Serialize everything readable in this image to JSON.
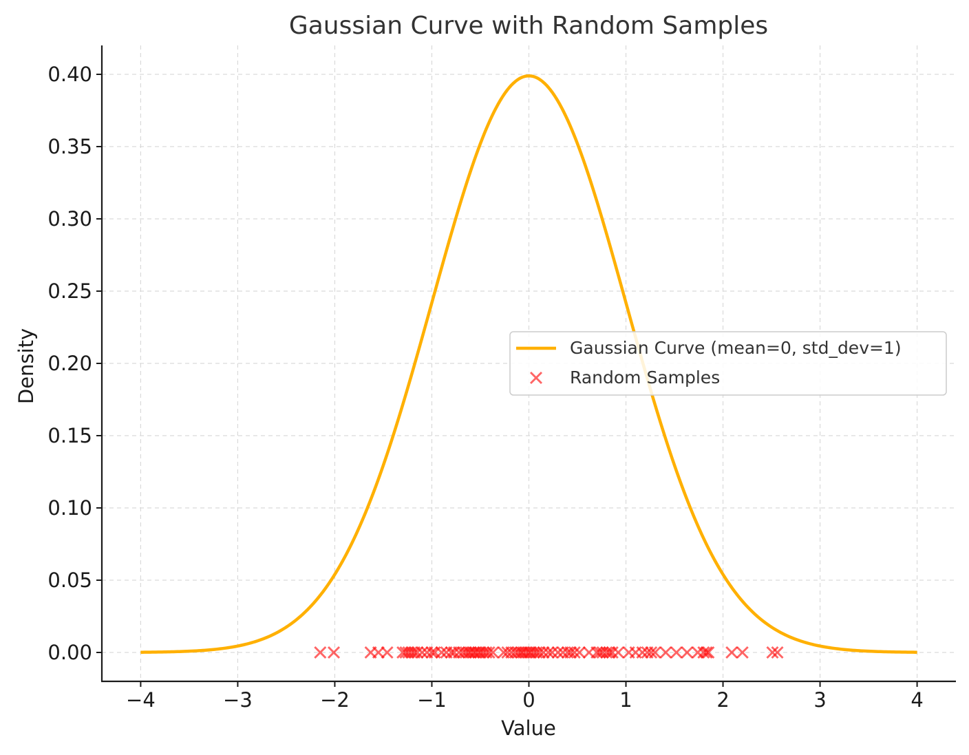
{
  "chart_data": {
    "type": "line",
    "title": "Gaussian Curve with Random Samples",
    "xlabel": "Value",
    "ylabel": "Density",
    "xlim": [
      -4.4,
      4.4
    ],
    "ylim": [
      -0.02,
      0.42
    ],
    "x_ticks": [
      -4,
      -3,
      -2,
      -1,
      0,
      1,
      2,
      3,
      4
    ],
    "x_tick_labels": [
      "−4",
      "−3",
      "−2",
      "−1",
      "0",
      "1",
      "2",
      "3",
      "4"
    ],
    "y_ticks": [
      0.0,
      0.05,
      0.1,
      0.15,
      0.2,
      0.25,
      0.3,
      0.35,
      0.4
    ],
    "y_tick_labels": [
      "0.00",
      "0.05",
      "0.10",
      "0.15",
      "0.20",
      "0.25",
      "0.30",
      "0.35",
      "0.40"
    ],
    "grid": true,
    "legend_position": "center-right",
    "series": [
      {
        "name": "Gaussian Curve (mean=0, std_dev=1)",
        "kind": "line",
        "color": "#FFB000",
        "mean": 0,
        "std_dev": 1,
        "x_range": [
          -4,
          4
        ]
      },
      {
        "name": "Random Samples",
        "kind": "scatter",
        "marker": "x",
        "color": "#FF0000",
        "x": [
          -2.15,
          -2.01,
          -1.63,
          -1.55,
          -1.46,
          -1.3,
          -1.27,
          -1.24,
          -1.21,
          -1.18,
          -1.15,
          -1.1,
          -1.05,
          -1.0,
          -0.97,
          -0.9,
          -0.85,
          -0.8,
          -0.77,
          -0.72,
          -0.68,
          -0.65,
          -0.62,
          -0.6,
          -0.57,
          -0.55,
          -0.52,
          -0.5,
          -0.47,
          -0.44,
          -0.41,
          -0.37,
          -0.26,
          -0.22,
          -0.18,
          -0.14,
          -0.11,
          -0.08,
          -0.06,
          -0.03,
          0.0,
          0.02,
          0.05,
          0.08,
          0.11,
          0.15,
          0.2,
          0.24,
          0.3,
          0.35,
          0.4,
          0.43,
          0.47,
          0.52,
          0.62,
          0.7,
          0.73,
          0.76,
          0.8,
          0.83,
          0.86,
          0.92,
          1.03,
          1.1,
          1.17,
          1.22,
          1.26,
          1.3,
          1.41,
          1.52,
          1.63,
          1.74,
          1.8,
          1.83,
          1.85,
          2.09,
          2.2,
          2.51,
          2.56
        ],
        "y": [
          0,
          0,
          0,
          0,
          0,
          0,
          0,
          0,
          0,
          0,
          0,
          0,
          0,
          0,
          0,
          0,
          0,
          0,
          0,
          0,
          0,
          0,
          0,
          0,
          0,
          0,
          0,
          0,
          0,
          0,
          0,
          0,
          0,
          0,
          0,
          0,
          0,
          0,
          0,
          0,
          0,
          0,
          0,
          0,
          0,
          0,
          0,
          0,
          0,
          0,
          0,
          0,
          0,
          0,
          0,
          0,
          0,
          0,
          0,
          0,
          0,
          0,
          0,
          0,
          0,
          0,
          0,
          0,
          0,
          0,
          0,
          0,
          0,
          0,
          0,
          0,
          0,
          0,
          0
        ]
      }
    ]
  }
}
